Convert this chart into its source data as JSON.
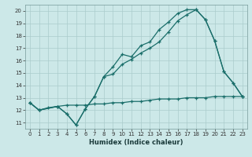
{
  "title": "",
  "xlabel": "Humidex (Indice chaleur)",
  "bg_color": "#cce8e8",
  "grid_color": "#aacccc",
  "line_color": "#1a6e6a",
  "xlim": [
    -0.5,
    23.5
  ],
  "ylim": [
    10.5,
    20.5
  ],
  "yticks": [
    11,
    12,
    13,
    14,
    15,
    16,
    17,
    18,
    19,
    20
  ],
  "xticks": [
    0,
    1,
    2,
    3,
    4,
    5,
    6,
    7,
    8,
    9,
    10,
    11,
    12,
    13,
    14,
    15,
    16,
    17,
    18,
    19,
    20,
    21,
    22,
    23
  ],
  "line1_x": [
    0,
    1,
    3,
    4,
    5,
    6,
    7,
    8,
    9,
    10,
    11,
    12,
    13,
    14,
    15,
    16,
    17,
    18,
    19,
    20,
    21,
    22,
    23
  ],
  "line1_y": [
    12.6,
    12.0,
    12.3,
    11.7,
    10.8,
    12.1,
    13.1,
    14.7,
    15.5,
    16.5,
    16.3,
    17.2,
    17.5,
    18.5,
    19.1,
    19.8,
    20.1,
    20.1,
    19.3,
    17.6,
    15.1,
    14.2,
    13.1
  ],
  "line2_x": [
    0,
    1,
    3,
    4,
    5,
    6,
    7,
    8,
    9,
    10,
    11,
    12,
    13,
    14,
    15,
    16,
    17,
    18,
    19,
    20,
    21,
    22,
    23
  ],
  "line2_y": [
    12.6,
    12.0,
    12.3,
    11.7,
    10.8,
    12.1,
    13.1,
    14.7,
    14.9,
    15.7,
    16.1,
    16.6,
    17.0,
    17.5,
    18.3,
    19.2,
    19.7,
    20.1,
    19.3,
    17.6,
    15.1,
    14.2,
    13.1
  ],
  "line3_x": [
    0,
    1,
    2,
    3,
    4,
    5,
    6,
    7,
    8,
    9,
    10,
    11,
    12,
    13,
    14,
    15,
    16,
    17,
    18,
    19,
    20,
    21,
    22,
    23
  ],
  "line3_y": [
    12.6,
    12.0,
    12.2,
    12.3,
    12.4,
    12.4,
    12.4,
    12.5,
    12.5,
    12.6,
    12.6,
    12.7,
    12.7,
    12.8,
    12.9,
    12.9,
    12.9,
    13.0,
    13.0,
    13.0,
    13.1,
    13.1,
    13.1,
    13.1
  ],
  "lw": 0.9,
  "ms": 3.0,
  "tick_fontsize": 5.0,
  "xlabel_fontsize": 6.0
}
